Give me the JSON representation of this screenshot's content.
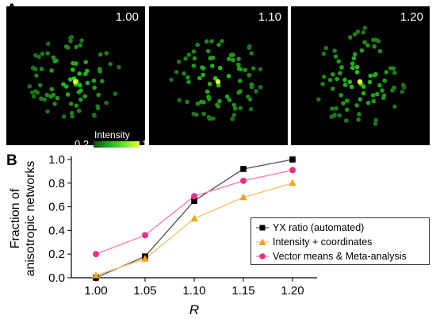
{
  "panel_a": {
    "letter": "A",
    "images": [
      {
        "ratio": "1.00"
      },
      {
        "ratio": "1.10"
      },
      {
        "ratio": "1.20"
      }
    ],
    "colorbar": {
      "title": "Intensity",
      "min": "0.2",
      "max": "1"
    }
  },
  "panel_b": {
    "letter": "B"
  },
  "chart_data": {
    "type": "line",
    "title": "",
    "xlabel": "R",
    "ylabel": "Fraction of anisotropic networks",
    "ylabel_lines": [
      "Fraction of",
      "anisotropic networks"
    ],
    "x": [
      1.0,
      1.05,
      1.1,
      1.15,
      1.2
    ],
    "x_tick_labels": [
      "1.00",
      "1.05",
      "1.10",
      "1.15",
      "1.20"
    ],
    "ylim": [
      0.0,
      1.0
    ],
    "y_ticks": [
      0.0,
      0.2,
      0.4,
      0.6,
      0.8,
      1.0
    ],
    "y_tick_labels": [
      "0.0",
      "0.2",
      "0.4",
      "0.6",
      "0.8",
      "1.0"
    ],
    "grid": false,
    "legend_position": "bottom-right",
    "series": [
      {
        "name": "YX ratio (automated)",
        "color": "#5a5a5a",
        "marker_color": "#000000",
        "marker": "square",
        "values": [
          0.0,
          0.18,
          0.65,
          0.92,
          1.0
        ]
      },
      {
        "name": "Intensity + coordinates",
        "color": "#ffc26b",
        "marker_color": "#f5a21a",
        "marker": "triangle",
        "values": [
          0.02,
          0.16,
          0.5,
          0.68,
          0.8
        ]
      },
      {
        "name": "Vector means & Meta-analysis",
        "color": "#ff7fb2",
        "marker_color": "#ef2f86",
        "marker": "circle",
        "values": [
          0.2,
          0.36,
          0.69,
          0.82,
          0.91
        ]
      }
    ]
  }
}
